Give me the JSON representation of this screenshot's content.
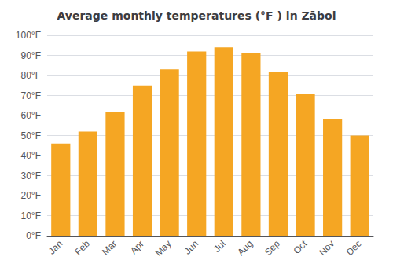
{
  "chart_data": {
    "type": "bar",
    "title": "Average monthly temperatures (°F ) in Zābol",
    "categories": [
      "Jan",
      "Feb",
      "Mar",
      "Apr",
      "May",
      "Jun",
      "Jul",
      "Aug",
      "Sep",
      "Oct",
      "Nov",
      "Dec"
    ],
    "values": [
      46,
      52,
      62,
      75,
      83,
      92,
      94,
      91,
      82,
      71,
      58,
      50
    ],
    "color": "#F5A623",
    "ylim": [
      0,
      100
    ],
    "yticks": [
      {
        "value": 0,
        "label": "0°F"
      },
      {
        "value": 10,
        "label": "10°F"
      },
      {
        "value": 20,
        "label": "20°F"
      },
      {
        "value": 30,
        "label": "30°F"
      },
      {
        "value": 40,
        "label": "40°F"
      },
      {
        "value": 50,
        "label": "50°F"
      },
      {
        "value": 60,
        "label": "60°F"
      },
      {
        "value": 70,
        "label": "70°F"
      },
      {
        "value": 80,
        "label": "80°F"
      },
      {
        "value": 90,
        "label": "90°F"
      },
      {
        "value": 100,
        "label": "100°F"
      }
    ],
    "grid": true
  }
}
